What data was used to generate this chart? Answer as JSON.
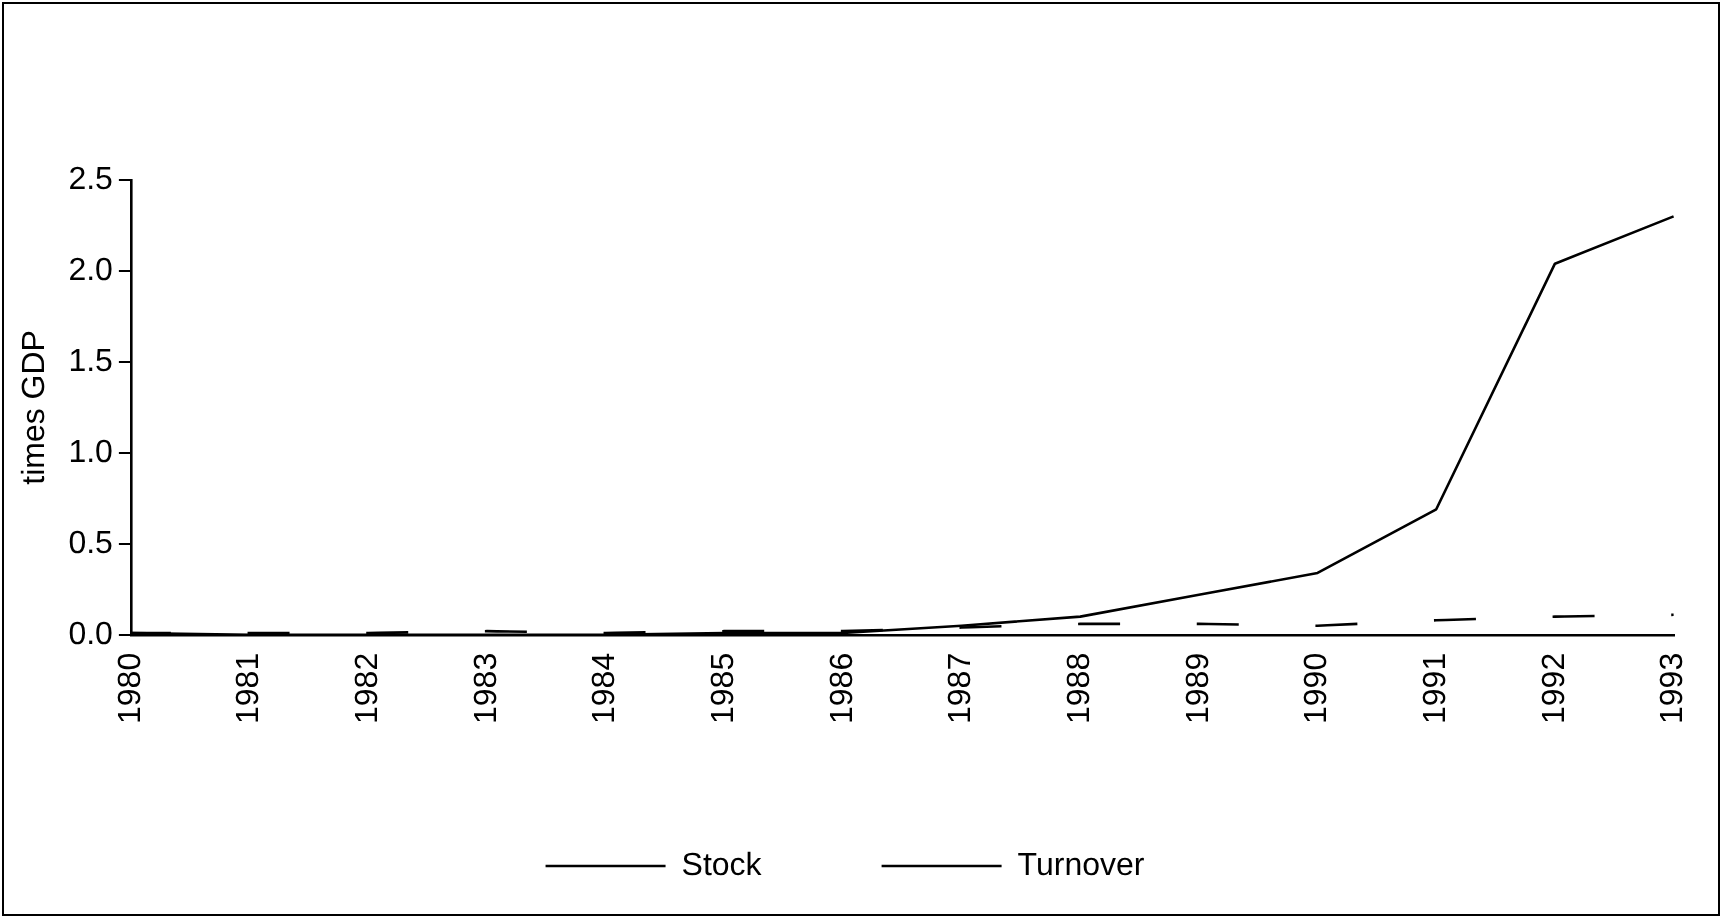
{
  "chart_data": {
    "type": "line",
    "ylabel": "times GDP",
    "categories": [
      "1980",
      "1981",
      "1982",
      "1983",
      "1984",
      "1985",
      "1986",
      "1987",
      "1988",
      "1989",
      "1990",
      "1991",
      "1992",
      "1993"
    ],
    "series": [
      {
        "name": "Stock",
        "color": "#000000",
        "line_style": "dashed",
        "values": [
          0.01,
          0.01,
          0.01,
          0.02,
          0.01,
          0.02,
          0.02,
          0.04,
          0.06,
          0.06,
          0.05,
          0.08,
          0.1,
          0.11
        ]
      },
      {
        "name": "Turnover",
        "color": "#000000",
        "line_style": "solid",
        "values": [
          0.01,
          0.0,
          0.0,
          0.0,
          0.0,
          0.01,
          0.01,
          0.05,
          0.1,
          0.22,
          0.34,
          0.69,
          2.04,
          2.3
        ]
      }
    ],
    "ylim": [
      0,
      2.5
    ],
    "yticks": [
      {
        "value": 0,
        "label": "0.0"
      },
      {
        "value": 0.5,
        "label": "0.5"
      },
      {
        "value": 1,
        "label": "1.0"
      },
      {
        "value": 1.5,
        "label": "1.5"
      },
      {
        "value": 2,
        "label": "2.0"
      },
      {
        "value": 2.5,
        "label": "2.5"
      }
    ],
    "grid": false,
    "legend": "bottom",
    "marker": "none"
  }
}
